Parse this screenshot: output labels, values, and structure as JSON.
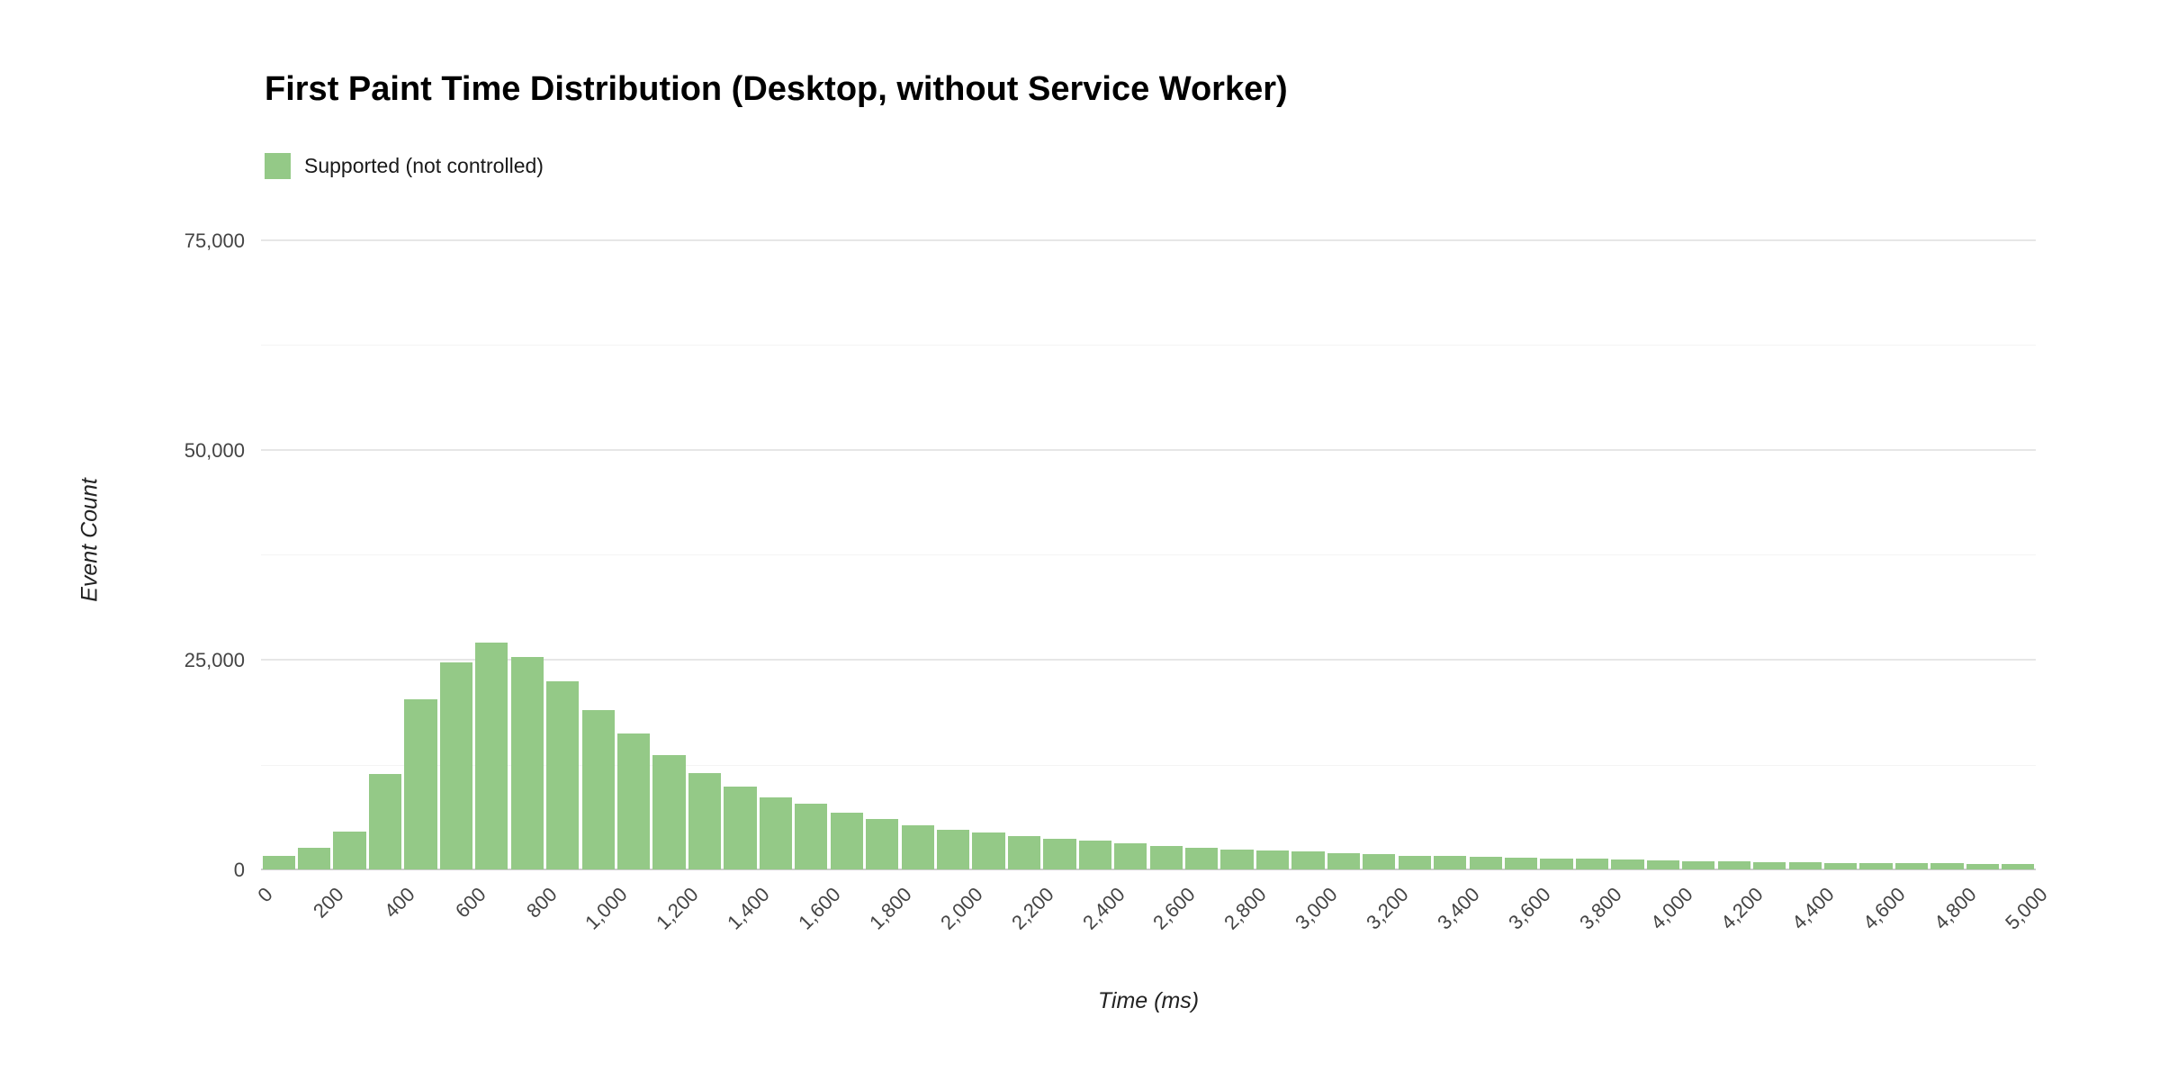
{
  "page": {
    "background": "#ffffff"
  },
  "chart_data": {
    "type": "bar",
    "subtype": "histogram",
    "title": "First Paint Time Distribution (Desktop, without Service Worker)",
    "xlabel": "Time (ms)",
    "ylabel": "Event Count",
    "legend": {
      "label": "Supported (not controlled)",
      "color": "#94c987",
      "position": "top-left"
    },
    "grid": "on",
    "xlim": [
      0,
      5000
    ],
    "ylim": [
      0,
      78000
    ],
    "bin_width_ms": 100,
    "y_ticks": [
      {
        "v": 0,
        "label": "0"
      },
      {
        "v": 25000,
        "label": "25,000"
      },
      {
        "v": 50000,
        "label": "50,000"
      },
      {
        "v": 75000,
        "label": "75,000"
      }
    ],
    "y_minor_gridlines": [
      12500,
      37500,
      62500
    ],
    "x_ticks": [
      {
        "v": 0,
        "label": "0"
      },
      {
        "v": 200,
        "label": "200"
      },
      {
        "v": 400,
        "label": "400"
      },
      {
        "v": 600,
        "label": "600"
      },
      {
        "v": 800,
        "label": "800"
      },
      {
        "v": 1000,
        "label": "1,000"
      },
      {
        "v": 1200,
        "label": "1,200"
      },
      {
        "v": 1400,
        "label": "1,400"
      },
      {
        "v": 1600,
        "label": "1,600"
      },
      {
        "v": 1800,
        "label": "1,800"
      },
      {
        "v": 2000,
        "label": "2,000"
      },
      {
        "v": 2200,
        "label": "2,200"
      },
      {
        "v": 2400,
        "label": "2,400"
      },
      {
        "v": 2600,
        "label": "2,600"
      },
      {
        "v": 2800,
        "label": "2,800"
      },
      {
        "v": 3000,
        "label": "3,000"
      },
      {
        "v": 3200,
        "label": "3,200"
      },
      {
        "v": 3400,
        "label": "3,400"
      },
      {
        "v": 3600,
        "label": "3,600"
      },
      {
        "v": 3800,
        "label": "3,800"
      },
      {
        "v": 4000,
        "label": "4,000"
      },
      {
        "v": 4200,
        "label": "4,200"
      },
      {
        "v": 4400,
        "label": "4,400"
      },
      {
        "v": 4600,
        "label": "4,600"
      },
      {
        "v": 4800,
        "label": "4,800"
      },
      {
        "v": 5000,
        "label": "5,000"
      }
    ],
    "series": [
      {
        "name": "Supported (not controlled)",
        "color": "#94c987",
        "bin_start_ms": [
          0,
          100,
          200,
          300,
          400,
          500,
          600,
          700,
          800,
          900,
          1000,
          1100,
          1200,
          1300,
          1400,
          1500,
          1600,
          1700,
          1800,
          1900,
          2000,
          2100,
          2200,
          2300,
          2400,
          2500,
          2600,
          2700,
          2800,
          2900,
          3000,
          3100,
          3200,
          3300,
          3400,
          3500,
          3600,
          3700,
          3800,
          3900,
          4000,
          4100,
          4200,
          4300,
          4400,
          4500,
          4600,
          4700,
          4800,
          4900
        ],
        "values": [
          1600,
          2600,
          4500,
          11400,
          20300,
          24700,
          27000,
          25300,
          22400,
          19000,
          16200,
          13600,
          11500,
          9900,
          8600,
          7800,
          6800,
          6000,
          5300,
          4700,
          4400,
          4000,
          3700,
          3400,
          3100,
          2800,
          2600,
          2400,
          2300,
          2100,
          1900,
          1800,
          1600,
          1600,
          1500,
          1400,
          1300,
          1300,
          1200,
          1100,
          1000,
          1000,
          900,
          900,
          800,
          800,
          700,
          700,
          600,
          600
        ]
      }
    ]
  }
}
